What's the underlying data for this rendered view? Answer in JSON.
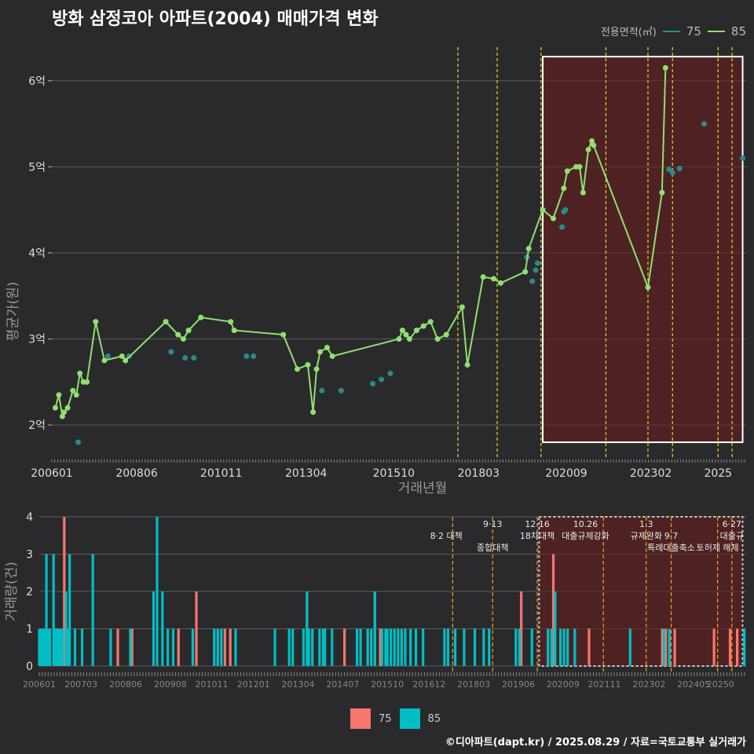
{
  "title": "방화 삼정코아 아파트(2004) 매매가격 변화",
  "legend_title": "전용면적(㎡)",
  "series_colors": {
    "75": "#2a8a8a",
    "85": "#90e070"
  },
  "bar_colors": {
    "75": "#f8766d",
    "85": "#00bfc4"
  },
  "legend_bottom": [
    {
      "label": "75",
      "color": "#f8766d"
    },
    {
      "label": "85",
      "color": "#00bfc4"
    }
  ],
  "footer": "©디아파트(dapt.kr) / 2025.08.29 / 자료=국토교통부 실거래가",
  "chart_data": [
    {
      "type": "line",
      "title": "방화 삼정코아 아파트(2004) 매매가격 변화",
      "xlabel": "거래년월",
      "ylabel": "평균가(원)",
      "xlim": [
        2006.0,
        2025.8
      ],
      "ylim": [
        1.6,
        6.5
      ],
      "y_ticks": [
        2,
        3,
        4,
        5,
        6
      ],
      "y_tick_labels": [
        "2억",
        "3억",
        "4억",
        "5억",
        "6억"
      ],
      "x_ticks": [
        2006.0,
        2008.42,
        2010.83,
        2013.25,
        2015.75,
        2018.17,
        2020.67,
        2023.08,
        2025.0
      ],
      "x_tick_labels": [
        "200601",
        "200806",
        "201011",
        "201304",
        "201510",
        "201803",
        "202009",
        "202302",
        "2025"
      ],
      "policy_lines": [
        2017.58,
        2018.7,
        2019.95,
        2021.8,
        2023.0,
        2023.7,
        2025.0,
        2025.4
      ],
      "highlight_box": {
        "x0": 2020.0,
        "x1": 2025.7,
        "y0": 1.8,
        "y1": 6.28
      },
      "series": [
        {
          "name": "85",
          "x": [
            2006.1,
            2006.2,
            2006.3,
            2006.35,
            2006.45,
            2006.6,
            2006.7,
            2006.8,
            2006.9,
            2007.0,
            2007.25,
            2007.5,
            2008.0,
            2008.1,
            2009.25,
            2009.6,
            2009.75,
            2009.9,
            2010.25,
            2011.1,
            2011.2,
            2012.6,
            2013.0,
            2013.3,
            2013.45,
            2013.55,
            2013.65,
            2013.85,
            2014.0,
            2015.9,
            2016.0,
            2016.1,
            2016.2,
            2016.4,
            2016.6,
            2016.8,
            2017.0,
            2017.25,
            2017.7,
            2017.85,
            2018.3,
            2018.6,
            2018.8,
            2019.5,
            2019.6,
            2020.0,
            2020.3,
            2020.6,
            2020.7,
            2020.95,
            2021.05,
            2021.15,
            2021.3,
            2021.4,
            2021.45,
            2023.0,
            2023.4,
            2023.5
          ],
          "y": [
            2.2,
            2.35,
            2.1,
            2.15,
            2.2,
            2.4,
            2.35,
            2.6,
            2.5,
            2.5,
            3.2,
            2.75,
            2.8,
            2.75,
            3.2,
            3.05,
            3.0,
            3.1,
            3.25,
            3.2,
            3.1,
            3.05,
            2.65,
            2.7,
            2.15,
            2.65,
            2.85,
            2.9,
            2.8,
            3.0,
            3.1,
            3.05,
            3.0,
            3.1,
            3.15,
            3.2,
            3.0,
            3.05,
            3.37,
            2.7,
            3.72,
            3.7,
            3.65,
            3.78,
            4.05,
            4.5,
            4.4,
            4.75,
            4.95,
            5.0,
            5.0,
            4.7,
            5.2,
            5.3,
            5.25,
            3.6,
            4.7,
            6.15
          ],
          "connected": true
        },
        {
          "name": "75",
          "x": [
            2006.75,
            2007.6,
            2008.2,
            2009.4,
            2009.8,
            2010.05,
            2011.55,
            2011.75,
            2013.7,
            2014.25,
            2015.15,
            2015.4,
            2015.65,
            2019.55,
            2019.7,
            2019.8,
            2019.85,
            2020.55,
            2020.6,
            2020.65,
            2023.6,
            2023.7,
            2023.9,
            2024.6,
            2025.7
          ],
          "y": [
            1.8,
            2.8,
            2.8,
            2.85,
            2.78,
            2.78,
            2.8,
            2.8,
            2.4,
            2.4,
            2.48,
            2.53,
            2.6,
            3.95,
            3.67,
            3.8,
            3.88,
            4.3,
            4.48,
            4.5,
            4.97,
            4.93,
            4.98,
            5.5,
            5.1
          ],
          "connected": false
        }
      ]
    },
    {
      "type": "bar",
      "xlabel": "",
      "ylabel": "거래량(건)",
      "ylim": [
        0,
        4
      ],
      "y_ticks": [
        0,
        1,
        2,
        3,
        4
      ],
      "y_tick_labels": [
        "0",
        "1",
        "2",
        "3",
        "4"
      ],
      "xlim": [
        2006.0,
        2025.8
      ],
      "x_ticks": [
        2006.0,
        2007.17,
        2008.42,
        2009.67,
        2010.83,
        2012.0,
        2013.25,
        2014.5,
        2015.75,
        2016.92,
        2018.17,
        2019.42,
        2020.67,
        2021.83,
        2023.08,
        2024.33,
        2025.08
      ],
      "x_tick_labels": [
        "200601",
        "200703",
        "200806",
        "200908",
        "201011",
        "201201",
        "201304",
        "201407",
        "201510",
        "201612",
        "201803",
        "201906",
        "202009",
        "202111",
        "202302",
        "202405",
        "20250"
      ],
      "highlight_box": {
        "x0": 2020.0,
        "x1": 2025.7
      },
      "policy_lines": [
        2017.58,
        2018.7,
        2019.95,
        2021.8,
        2023.0,
        2023.7,
        2025.0,
        2025.4
      ],
      "annotations": [
        {
          "x": 2017.4,
          "row": 0,
          "text": "8·2 대책"
        },
        {
          "x": 2018.7,
          "row": -1,
          "text": "9·13"
        },
        {
          "x": 2018.7,
          "row": 1,
          "text": "종합대책"
        },
        {
          "x": 2019.95,
          "row": -1,
          "text": "12·16"
        },
        {
          "x": 2019.95,
          "row": 0,
          "text": "18차대책"
        },
        {
          "x": 2021.3,
          "row": -1,
          "text": "10.26"
        },
        {
          "x": 2021.3,
          "row": 0,
          "text": "대출규제강화"
        },
        {
          "x": 2023.0,
          "row": -1,
          "text": "1.3"
        },
        {
          "x": 2023.0,
          "row": 0,
          "text": "규제완화"
        },
        {
          "x": 2023.7,
          "row": 0,
          "text": "9·7"
        },
        {
          "x": 2023.7,
          "row": 1,
          "text": "특례대출축소"
        },
        {
          "x": 2025.0,
          "row": 1,
          "text": "토허제 해제"
        },
        {
          "x": 2025.4,
          "row": -1,
          "text": "6·27"
        },
        {
          "x": 2025.4,
          "row": 0,
          "text": "대출규"
        }
      ],
      "series": [
        {
          "name": "75",
          "x": [
            2006.7,
            2008.2,
            2008.6,
            2009.9,
            2010.4,
            2011.2,
            2011.35,
            2013.5,
            2014.55,
            2015.4,
            2015.55,
            2019.5,
            2020.4,
            2021.4,
            2023.45,
            2023.55,
            2023.8,
            2024.9,
            2025.35,
            2025.55
          ],
          "values": [
            4,
            1,
            1,
            1,
            2,
            1,
            1,
            2,
            1,
            2,
            1,
            2,
            3,
            1,
            1,
            1,
            1,
            1,
            1,
            1
          ]
        },
        {
          "name": "85",
          "x": [
            2006.0,
            2006.05,
            2006.1,
            2006.15,
            2006.2,
            2006.25,
            2006.3,
            2006.4,
            2006.45,
            2006.5,
            2006.55,
            2006.6,
            2006.65,
            2006.75,
            2006.8,
            2006.85,
            2007.0,
            2007.2,
            2007.5,
            2008.0,
            2008.55,
            2009.2,
            2009.3,
            2009.45,
            2009.6,
            2009.75,
            2010.3,
            2010.9,
            2011.0,
            2011.1,
            2011.5,
            2012.6,
            2013.0,
            2013.1,
            2013.4,
            2013.5,
            2013.55,
            2013.65,
            2013.85,
            2013.95,
            2014.0,
            2014.2,
            2014.9,
            2015.0,
            2015.2,
            2015.3,
            2015.4,
            2015.6,
            2015.7,
            2015.75,
            2015.85,
            2015.95,
            2016.05,
            2016.15,
            2016.25,
            2016.4,
            2016.55,
            2016.75,
            2017.35,
            2017.45,
            2017.65,
            2017.9,
            2018.2,
            2018.45,
            2018.6,
            2019.35,
            2019.45,
            2019.8,
            2020.25,
            2020.35,
            2020.45,
            2020.6,
            2020.7,
            2020.8,
            2021.0,
            2022.55,
            2023.5,
            2023.65,
            2025.75
          ],
          "values": [
            1,
            1,
            1,
            1,
            3,
            1,
            1,
            3,
            1,
            1,
            1,
            1,
            1,
            2,
            1,
            3,
            1,
            1,
            3,
            1,
            1,
            2,
            4,
            2,
            1,
            1,
            1,
            1,
            1,
            1,
            1,
            1,
            1,
            1,
            1,
            2,
            1,
            1,
            1,
            1,
            1,
            1,
            1,
            1,
            1,
            1,
            2,
            1,
            1,
            1,
            1,
            1,
            1,
            1,
            1,
            1,
            1,
            1,
            1,
            1,
            1,
            1,
            1,
            1,
            1,
            1,
            1,
            1,
            1,
            1,
            2,
            1,
            1,
            1,
            1,
            1,
            1,
            1,
            1
          ]
        }
      ]
    }
  ]
}
